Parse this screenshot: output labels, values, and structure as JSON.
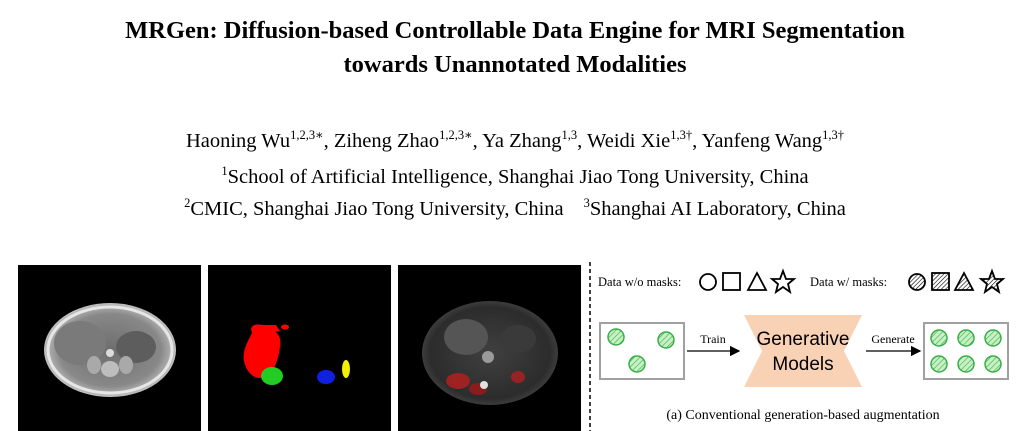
{
  "paper": {
    "title_line1": "MRGen: Diffusion-based Controllable Data Engine for MRI Segmentation",
    "title_line2": "towards Unannotated Modalities",
    "authors": [
      {
        "name": "Haoning Wu",
        "sup": "1,2,3∗"
      },
      {
        "name": "Ziheng Zhao",
        "sup": "1,2,3∗"
      },
      {
        "name": "Ya Zhang",
        "sup": "1,3"
      },
      {
        "name": "Weidi Xie",
        "sup": "1,3†"
      },
      {
        "name": "Yanfeng Wang",
        "sup": "1,3†"
      }
    ],
    "affiliations": [
      {
        "sup": "1",
        "text": "School of Artificial Intelligence, Shanghai Jiao Tong University, China"
      },
      {
        "sup": "2",
        "text": "CMIC, Shanghai Jiao Tong University, China"
      },
      {
        "sup": "3",
        "text": "Shanghai AI Laboratory, China"
      }
    ]
  },
  "figure": {
    "data_without_masks_label": "Data w/o masks:",
    "data_with_masks_label": "Data w/ masks:",
    "train_label": "Train",
    "generate_label": "Generate",
    "model_line1": "Generative",
    "model_line2": "Models",
    "caption": "(a) Conventional generation-based augmentation",
    "colors": {
      "model_fill": "#f9d2b6",
      "circle_fill": "#c8f0c4",
      "circle_stroke": "#38ae48",
      "box_stroke": "#a0a0a0",
      "mask_red": "#ff0000",
      "mask_green": "#22cc22",
      "mask_blue": "#1020e0",
      "mask_yellow": "#f0f000"
    }
  }
}
